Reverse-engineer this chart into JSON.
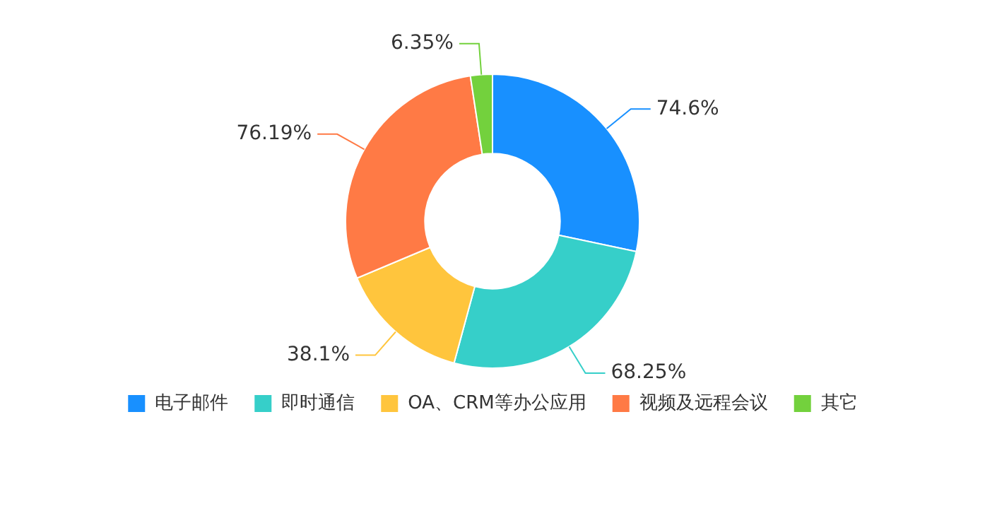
{
  "chart_data": {
    "type": "donut",
    "categories": [
      "电子邮件",
      "即时通信",
      "OA、CRM等办公应用",
      "视频及远程会议",
      "其它"
    ],
    "values": [
      74.6,
      68.25,
      38.1,
      76.19,
      6.35
    ],
    "value_labels": [
      "74.6%",
      "68.25%",
      "38.1%",
      "76.19%",
      "6.35%"
    ],
    "colors": [
      "#1890ff",
      "#36cfc9",
      "#ffc53d",
      "#ff7a45",
      "#73d13d"
    ],
    "legend": "bottom"
  }
}
